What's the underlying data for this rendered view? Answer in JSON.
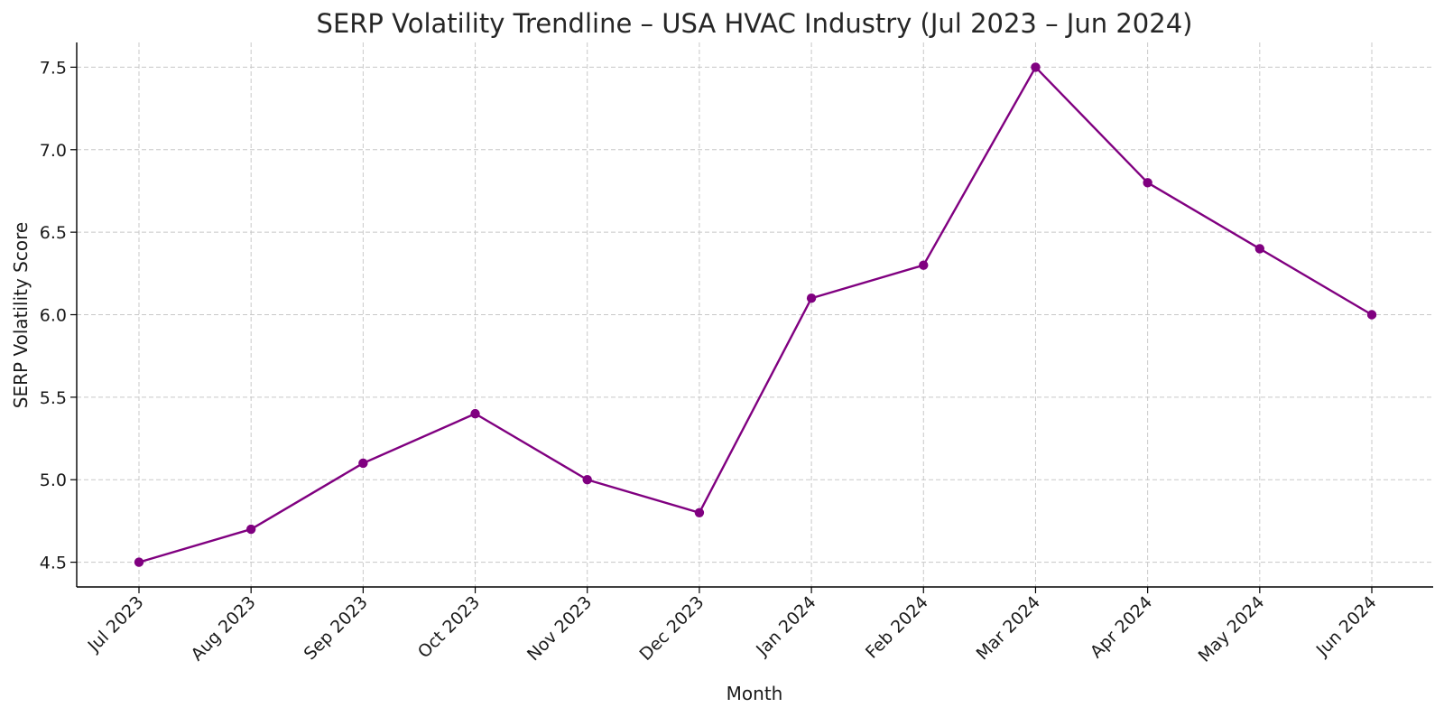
{
  "chart_data": {
    "type": "line",
    "title": "SERP Volatility Trendline – USA HVAC Industry (Jul 2023 – Jun 2024)",
    "xlabel": "Month",
    "ylabel": "SERP Volatility Score",
    "categories": [
      "Jul 2023",
      "Aug 2023",
      "Sep 2023",
      "Oct 2023",
      "Nov 2023",
      "Dec 2023",
      "Jan 2024",
      "Feb 2024",
      "Mar 2024",
      "Apr 2024",
      "May 2024",
      "Jun 2024"
    ],
    "series": [
      {
        "values": [
          4.5,
          4.7,
          5.1,
          5.4,
          5.0,
          4.8,
          6.1,
          6.3,
          7.5,
          6.8,
          6.4,
          6.0
        ],
        "color": "#800080",
        "marker": "circle"
      }
    ],
    "ylim": [
      4.35,
      7.65
    ],
    "yticks": [
      4.5,
      5.0,
      5.5,
      6.0,
      6.5,
      7.0,
      7.5
    ],
    "grid": true
  }
}
